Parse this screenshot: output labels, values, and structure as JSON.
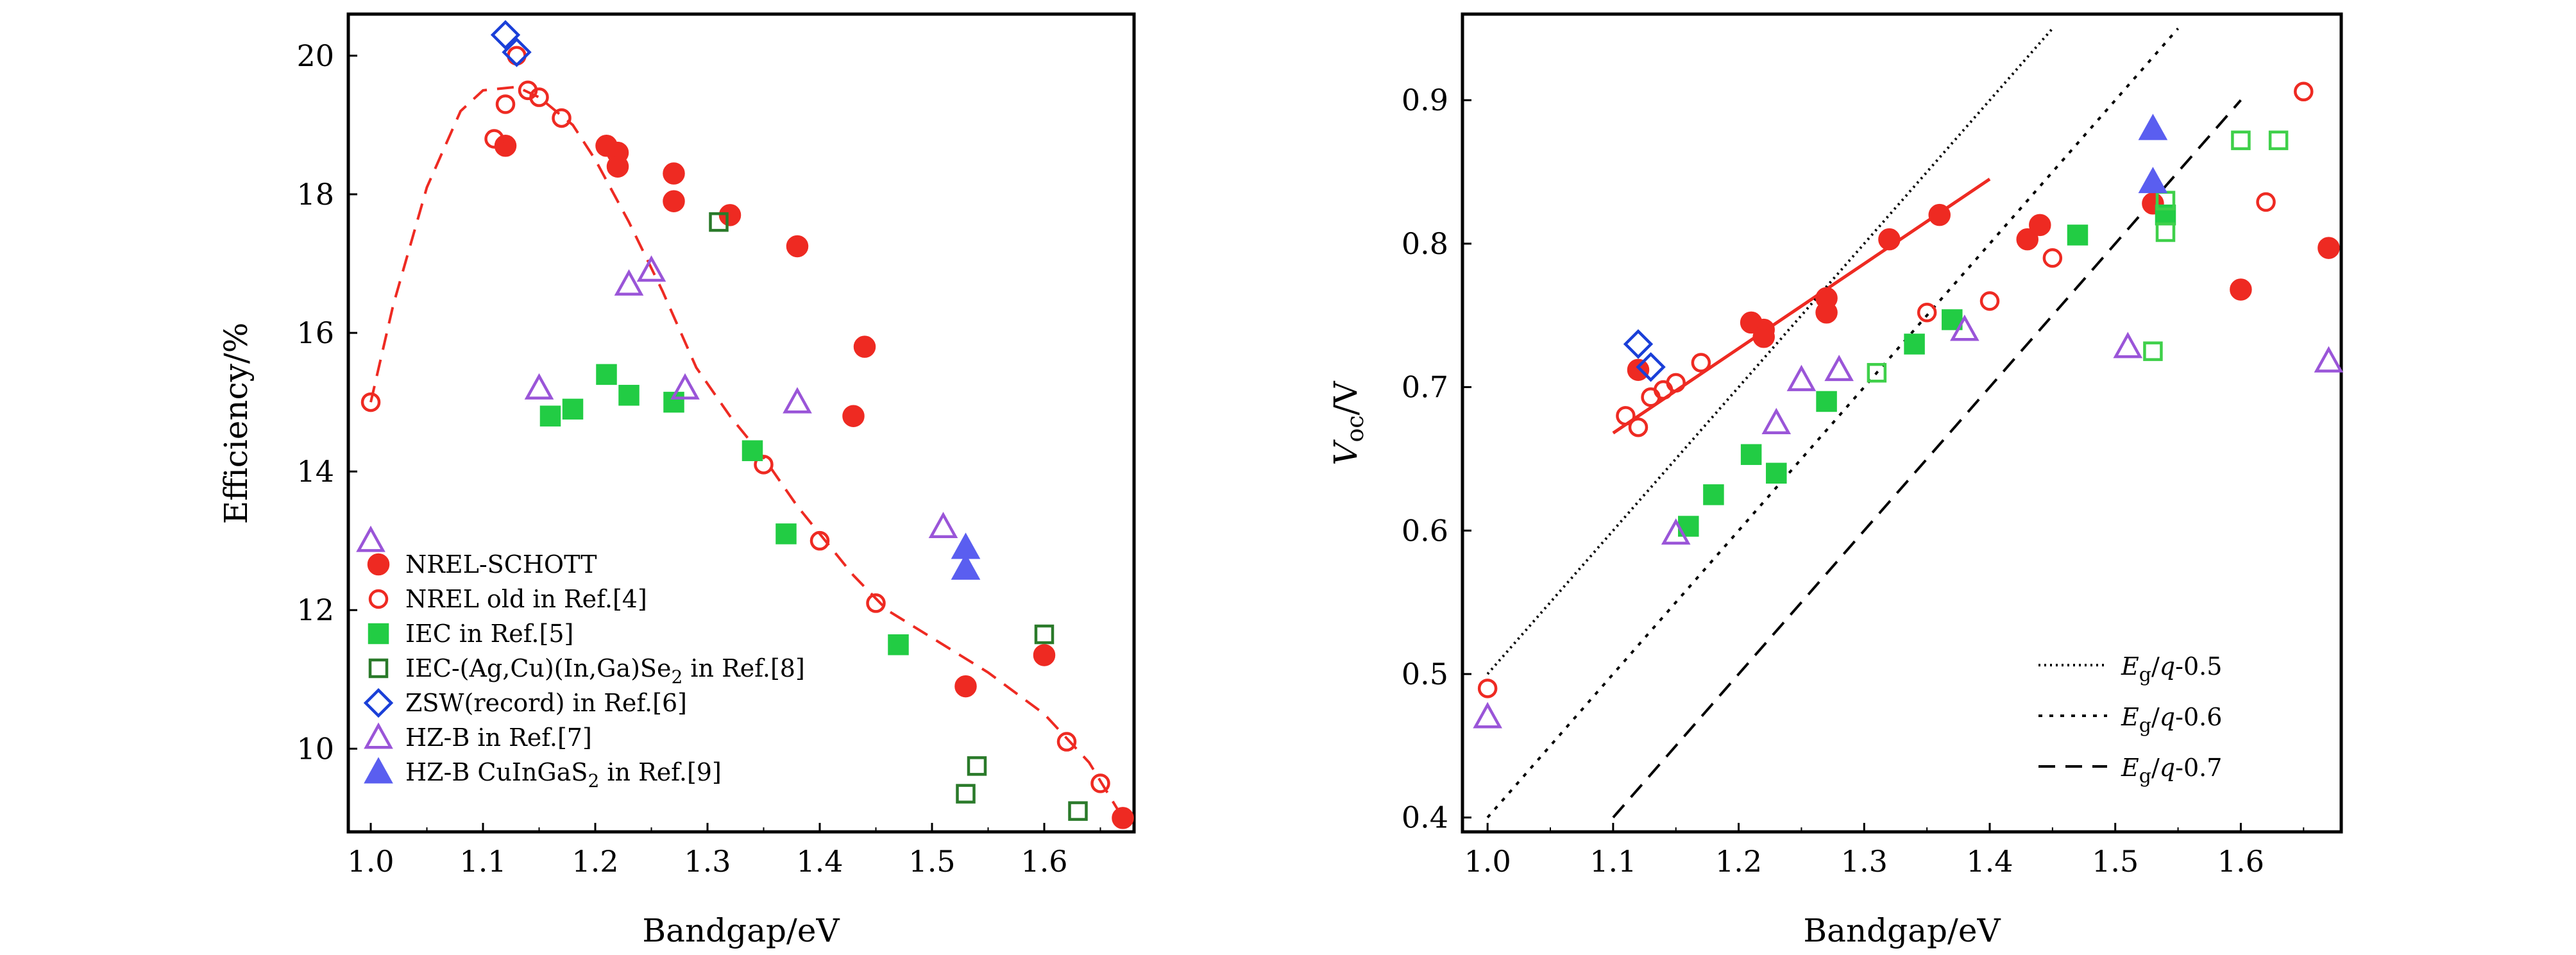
{
  "colors": {
    "red": "#ee2a22",
    "green": "#22cc44",
    "darkgreen": "#2a7a2a",
    "blue": "#1a3fd8",
    "purple": "#9a55d8",
    "fillblue": "#5a5ef0",
    "lightgreen": "#3fd04a",
    "axis": "#000000"
  },
  "chart_data": [
    {
      "id": "efficiency",
      "type": "scatter",
      "xlabel": "Bandgap/eV",
      "ylabel": "Efficiency/%",
      "xlim": [
        0.98,
        1.68
      ],
      "ylim": [
        8.8,
        20.6
      ],
      "xticks": [
        "1.0",
        "1.1",
        "1.2",
        "1.3",
        "1.4",
        "1.5",
        "1.6"
      ],
      "yticks": [
        "10",
        "12",
        "14",
        "16",
        "18",
        "20"
      ],
      "legend_position": "bottom-left",
      "series": [
        {
          "name": "NREL-SCHOTT",
          "marker": "circle",
          "filled": true,
          "color": "red",
          "points": [
            [
              1.12,
              18.7
            ],
            [
              1.21,
              18.7
            ],
            [
              1.22,
              18.6
            ],
            [
              1.22,
              18.4
            ],
            [
              1.27,
              18.3
            ],
            [
              1.27,
              17.9
            ],
            [
              1.32,
              17.7
            ],
            [
              1.38,
              17.25
            ],
            [
              1.43,
              14.8
            ],
            [
              1.44,
              15.8
            ],
            [
              1.53,
              10.9
            ],
            [
              1.6,
              11.35
            ],
            [
              1.67,
              9.0
            ]
          ]
        },
        {
          "name": "NREL old in Ref.[4]",
          "marker": "circle",
          "filled": false,
          "color": "red",
          "points": [
            [
              1.0,
              15.0
            ],
            [
              1.11,
              18.8
            ],
            [
              1.12,
              19.3
            ],
            [
              1.13,
              20.0
            ],
            [
              1.14,
              19.5
            ],
            [
              1.15,
              19.4
            ],
            [
              1.17,
              19.1
            ],
            [
              1.35,
              14.1
            ],
            [
              1.4,
              13.0
            ],
            [
              1.45,
              12.1
            ],
            [
              1.62,
              10.1
            ],
            [
              1.65,
              9.5
            ]
          ]
        },
        {
          "name": "IEC in Ref.[5]",
          "marker": "square",
          "filled": true,
          "color": "green",
          "points": [
            [
              1.16,
              14.8
            ],
            [
              1.18,
              14.9
            ],
            [
              1.21,
              15.4
            ],
            [
              1.23,
              15.1
            ],
            [
              1.27,
              15.0
            ],
            [
              1.34,
              14.3
            ],
            [
              1.37,
              13.1
            ],
            [
              1.47,
              11.5
            ]
          ]
        },
        {
          "name": "IEC-(Ag,Cu)(In,Ga)Se2 in Ref.[8]",
          "marker": "square",
          "filled": false,
          "color": "darkgreen",
          "points": [
            [
              1.31,
              17.6
            ],
            [
              1.53,
              9.35
            ],
            [
              1.54,
              9.75
            ],
            [
              1.6,
              11.65
            ],
            [
              1.63,
              9.1
            ]
          ]
        },
        {
          "name": "ZSW(record) in Ref.[6]",
          "marker": "diamond",
          "filled": false,
          "color": "blue",
          "points": [
            [
              1.12,
              20.3
            ],
            [
              1.13,
              20.05
            ]
          ]
        },
        {
          "name": "HZ-B in Ref.[7]",
          "marker": "triangle",
          "filled": false,
          "color": "purple",
          "points": [
            [
              1.0,
              13.0
            ],
            [
              1.15,
              15.2
            ],
            [
              1.23,
              16.7
            ],
            [
              1.25,
              16.9
            ],
            [
              1.28,
              15.2
            ],
            [
              1.38,
              15.0
            ],
            [
              1.51,
              13.2
            ]
          ]
        },
        {
          "name": "HZ-B CuInGaS2 in Ref.[9]",
          "marker": "triangle",
          "filled": true,
          "color": "fillblue",
          "points": [
            [
              1.53,
              12.9
            ],
            [
              1.53,
              12.6
            ]
          ]
        }
      ],
      "curves": [
        {
          "name": "dashed trend",
          "style": "dashed",
          "color": "red",
          "points": [
            [
              1.0,
              15.0
            ],
            [
              1.02,
              16.4
            ],
            [
              1.05,
              18.1
            ],
            [
              1.08,
              19.2
            ],
            [
              1.1,
              19.5
            ],
            [
              1.13,
              19.55
            ],
            [
              1.15,
              19.4
            ],
            [
              1.18,
              19.0
            ],
            [
              1.2,
              18.5
            ],
            [
              1.23,
              17.6
            ],
            [
              1.26,
              16.6
            ],
            [
              1.29,
              15.5
            ],
            [
              1.32,
              14.8
            ],
            [
              1.35,
              14.2
            ],
            [
              1.38,
              13.5
            ],
            [
              1.41,
              12.9
            ],
            [
              1.43,
              12.5
            ],
            [
              1.46,
              12.0
            ],
            [
              1.5,
              11.6
            ],
            [
              1.55,
              11.1
            ],
            [
              1.6,
              10.5
            ],
            [
              1.64,
              9.8
            ],
            [
              1.67,
              9.0
            ]
          ]
        }
      ],
      "legend_labels": {
        "NREL-SCHOTT": "NREL-SCHOTT",
        "NREL old in Ref.[4]": "NREL old in Ref.[4]",
        "IEC in Ref.[5]": "IEC in Ref.[5]",
        "IEC-(Ag,Cu)(In,Ga)Se2 in Ref.[8]": "IEC-(Ag,Cu)(In,Ga)Se",
        "ZSW(record) in Ref.[6]": "ZSW(record) in Ref.[6]",
        "HZ-B in Ref.[7]": "HZ-B in Ref.[7]",
        "HZ-B CuInGaS2 in Ref.[9]": "HZ-B CuInGaS"
      },
      "legend_suffix": {
        "IEC-(Ag,Cu)(In,Ga)Se2 in Ref.[8]": " in Ref.[8]",
        "HZ-B CuInGaS2 in Ref.[9]": " in Ref.[9]"
      },
      "legend_subscript": "2"
    },
    {
      "id": "voc",
      "type": "scatter",
      "xlabel": "Bandgap/eV",
      "ylabel_main": "V",
      "ylabel_sub": "oc",
      "ylabel_tail": "/V",
      "xlim": [
        0.98,
        1.68
      ],
      "ylim": [
        0.39,
        0.96
      ],
      "xticks": [
        "1.0",
        "1.1",
        "1.2",
        "1.3",
        "1.4",
        "1.5",
        "1.6"
      ],
      "yticks": [
        "0.4",
        "0.5",
        "0.6",
        "0.7",
        "0.8",
        "0.9"
      ],
      "legend_position": "bottom-right",
      "series": [
        {
          "name": "NREL-SCHOTT",
          "marker": "circle",
          "filled": true,
          "color": "red",
          "points": [
            [
              1.12,
              0.712
            ],
            [
              1.21,
              0.745
            ],
            [
              1.22,
              0.74
            ],
            [
              1.22,
              0.735
            ],
            [
              1.27,
              0.762
            ],
            [
              1.27,
              0.752
            ],
            [
              1.32,
              0.803
            ],
            [
              1.36,
              0.82
            ],
            [
              1.43,
              0.803
            ],
            [
              1.44,
              0.813
            ],
            [
              1.53,
              0.828
            ],
            [
              1.6,
              0.768
            ],
            [
              1.67,
              0.797
            ]
          ]
        },
        {
          "name": "NREL old",
          "marker": "circle",
          "filled": false,
          "color": "red",
          "points": [
            [
              1.0,
              0.49
            ],
            [
              1.11,
              0.68
            ],
            [
              1.12,
              0.672
            ],
            [
              1.13,
              0.693
            ],
            [
              1.14,
              0.698
            ],
            [
              1.15,
              0.703
            ],
            [
              1.17,
              0.717
            ],
            [
              1.35,
              0.752
            ],
            [
              1.4,
              0.76
            ],
            [
              1.45,
              0.79
            ],
            [
              1.62,
              0.829
            ],
            [
              1.65,
              0.906
            ]
          ]
        },
        {
          "name": "IEC",
          "marker": "square",
          "filled": true,
          "color": "green",
          "points": [
            [
              1.16,
              0.603
            ],
            [
              1.18,
              0.625
            ],
            [
              1.21,
              0.653
            ],
            [
              1.23,
              0.64
            ],
            [
              1.27,
              0.69
            ],
            [
              1.34,
              0.73
            ],
            [
              1.37,
              0.747
            ],
            [
              1.47,
              0.806
            ],
            [
              1.54,
              0.82
            ]
          ]
        },
        {
          "name": "IEC open",
          "marker": "square",
          "filled": false,
          "color": "lightgreen",
          "points": [
            [
              1.31,
              0.71
            ],
            [
              1.53,
              0.725
            ],
            [
              1.54,
              0.808
            ],
            [
              1.54,
              0.83
            ],
            [
              1.6,
              0.872
            ],
            [
              1.63,
              0.872
            ]
          ]
        },
        {
          "name": "ZSW",
          "marker": "diamond",
          "filled": false,
          "color": "blue",
          "points": [
            [
              1.12,
              0.73
            ],
            [
              1.13,
              0.714
            ]
          ]
        },
        {
          "name": "HZ-B",
          "marker": "triangle",
          "filled": false,
          "color": "purple",
          "points": [
            [
              1.0,
              0.47
            ],
            [
              1.15,
              0.598
            ],
            [
              1.23,
              0.675
            ],
            [
              1.25,
              0.705
            ],
            [
              1.28,
              0.712
            ],
            [
              1.38,
              0.74
            ],
            [
              1.51,
              0.728
            ],
            [
              1.67,
              0.718
            ]
          ]
        },
        {
          "name": "HZ-B CuInGaS2",
          "marker": "triangle",
          "filled": true,
          "color": "fillblue",
          "points": [
            [
              1.53,
              0.88
            ],
            [
              1.53,
              0.843
            ]
          ]
        }
      ],
      "curves": [
        {
          "name": "fit",
          "style": "solid",
          "color": "red",
          "points": [
            [
              1.1,
              0.668
            ],
            [
              1.4,
              0.845
            ]
          ]
        },
        {
          "name": "Eg/q-0.5",
          "style": "dotted",
          "color": "axis",
          "points": [
            [
              1.0,
              0.5
            ],
            [
              1.45,
              0.95
            ]
          ]
        },
        {
          "name": "Eg/q-0.6",
          "style": "dotted-dense",
          "color": "axis",
          "points": [
            [
              1.0,
              0.4
            ],
            [
              1.55,
              0.95
            ]
          ]
        },
        {
          "name": "Eg/q-0.7",
          "style": "dashed",
          "color": "axis",
          "points": [
            [
              1.1,
              0.4
            ],
            [
              1.6,
              0.9
            ]
          ]
        }
      ],
      "legend": [
        {
          "label_main": "E",
          "label_sub": "g",
          "label_tail": "/q-0.5",
          "style": "dotted"
        },
        {
          "label_main": "E",
          "label_sub": "g",
          "label_tail": "/q-0.6",
          "style": "dotted-dense"
        },
        {
          "label_main": "E",
          "label_sub": "g",
          "label_tail": "/q-0.7",
          "style": "dashed"
        }
      ]
    }
  ]
}
